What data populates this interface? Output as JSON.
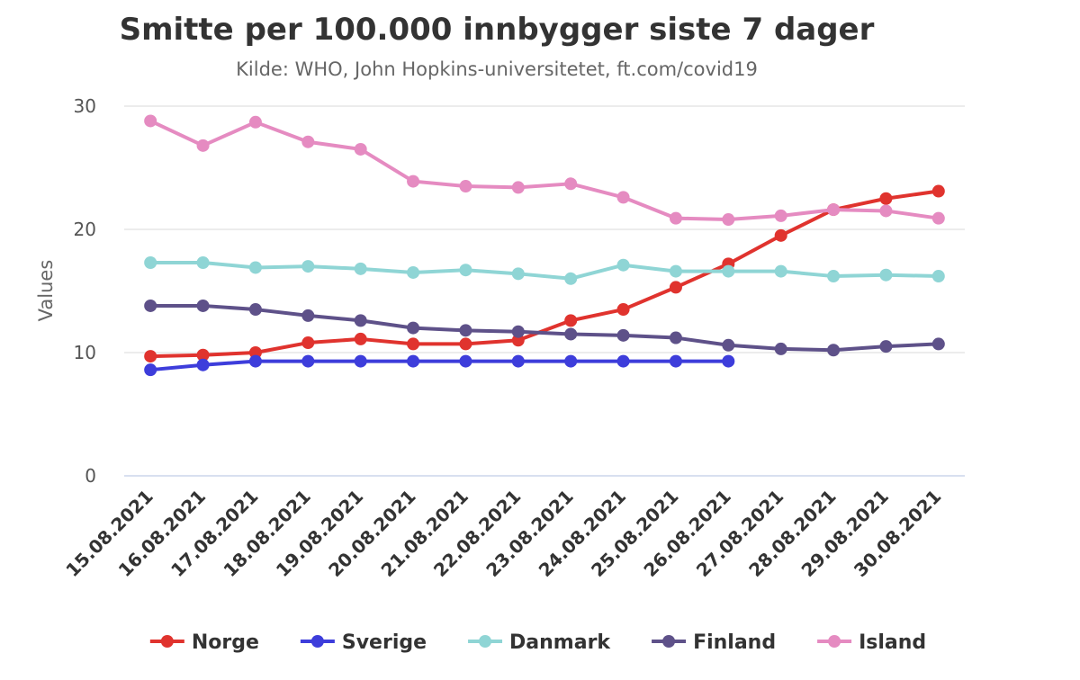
{
  "chart_data": {
    "type": "line",
    "title": "Smitte per 100.000 innbygger siste 7 dager",
    "subtitle": "Kilde: WHO, John Hopkins-universitetet, ft.com/covid19",
    "ylabel": "Values",
    "xlabel": "",
    "ylim": [
      0,
      30
    ],
    "yticks": [
      "0",
      "10",
      "20",
      "30"
    ],
    "grid": true,
    "legend_position": "bottom",
    "categories": [
      "15.08.2021",
      "16.08.2021",
      "17.08.2021",
      "18.08.2021",
      "19.08.2021",
      "20.08.2021",
      "21.08.2021",
      "22.08.2021",
      "23.08.2021",
      "24.08.2021",
      "25.08.2021",
      "26.08.2021",
      "27.08.2021",
      "28.08.2021",
      "29.08.2021",
      "30.08.2021"
    ],
    "series": [
      {
        "name": "Norge",
        "color": "#e0332e",
        "values": [
          9.7,
          9.8,
          10.0,
          10.8,
          11.1,
          10.7,
          10.7,
          11.0,
          12.6,
          13.5,
          15.3,
          17.2,
          19.5,
          21.6,
          22.5,
          23.1
        ]
      },
      {
        "name": "Sverige",
        "color": "#3d3ddb",
        "values": [
          8.6,
          9.0,
          9.3,
          9.3,
          9.3,
          9.3,
          9.3,
          9.3,
          9.3,
          9.3,
          9.3,
          9.3,
          null,
          null,
          null,
          null
        ]
      },
      {
        "name": "Danmark",
        "color": "#8fd5d5",
        "values": [
          17.3,
          17.3,
          16.9,
          17.0,
          16.8,
          16.5,
          16.7,
          16.4,
          16.0,
          17.1,
          16.6,
          16.6,
          16.6,
          16.2,
          16.3,
          16.2
        ]
      },
      {
        "name": "Finland",
        "color": "#5e5189",
        "values": [
          13.8,
          13.8,
          13.5,
          13.0,
          12.6,
          12.0,
          11.8,
          11.7,
          11.5,
          11.4,
          11.2,
          10.6,
          10.3,
          10.2,
          10.5,
          10.7
        ]
      },
      {
        "name": "Island",
        "color": "#e58bc1",
        "values": [
          28.8,
          26.8,
          28.7,
          27.1,
          26.5,
          23.9,
          23.5,
          23.4,
          23.7,
          22.6,
          20.9,
          20.8,
          21.1,
          21.6,
          21.5,
          20.9
        ]
      }
    ]
  }
}
